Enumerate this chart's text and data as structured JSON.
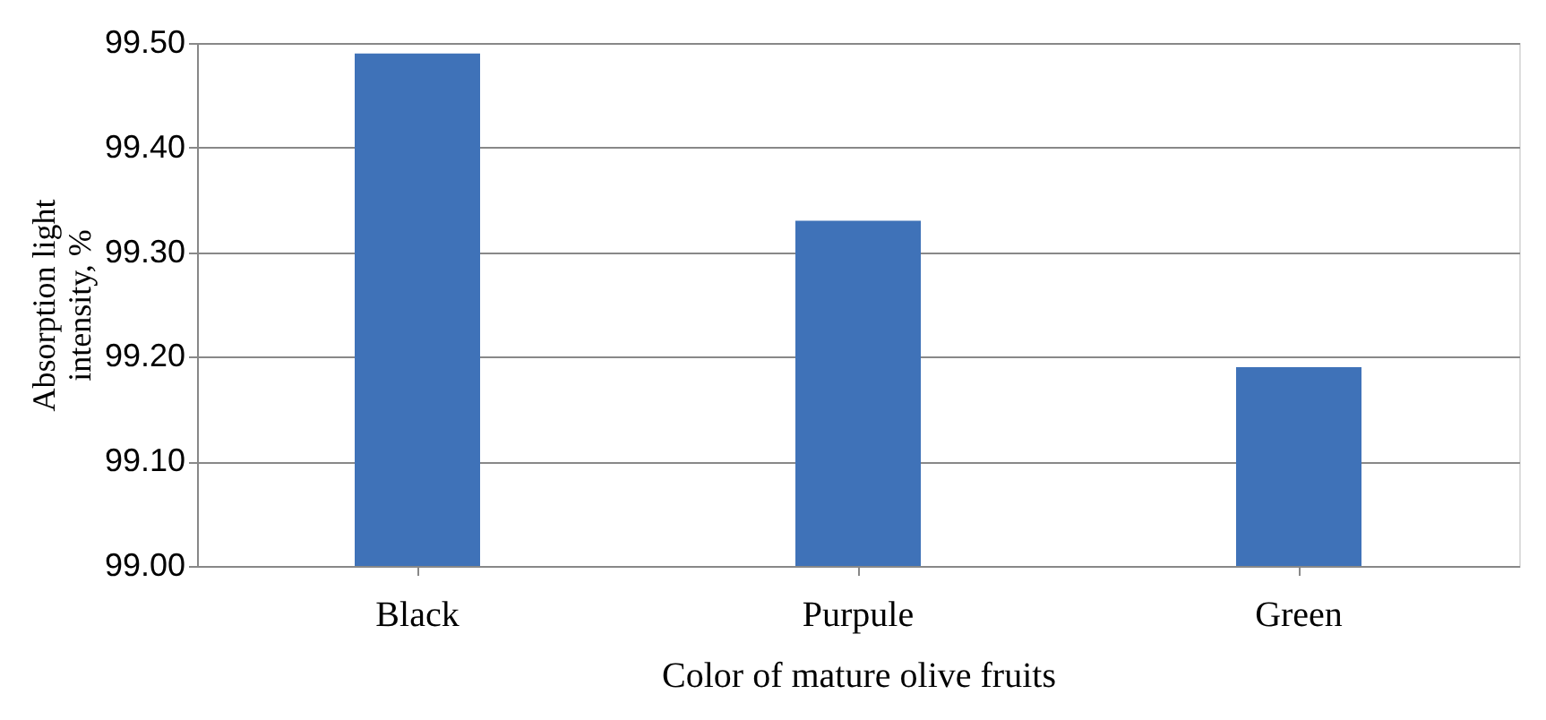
{
  "chart_data": {
    "type": "bar",
    "xlabel": "Color of mature   olive fruits",
    "ylabel": "Absorption light intensity, %",
    "categories": [
      "Black",
      "Purpule",
      "Green"
    ],
    "values": [
      99.49,
      99.33,
      99.19
    ],
    "color": "#3f72b8",
    "ylim": [
      99.0,
      99.5
    ],
    "yticks": [
      {
        "value": 99.0,
        "label": "99.00"
      },
      {
        "value": 99.1,
        "label": "99.10"
      },
      {
        "value": 99.2,
        "label": "99.20"
      },
      {
        "value": 99.3,
        "label": "99.30"
      },
      {
        "value": 99.4,
        "label": "99.40"
      },
      {
        "value": 99.5,
        "label": "99.50"
      }
    ],
    "grid": "y"
  }
}
